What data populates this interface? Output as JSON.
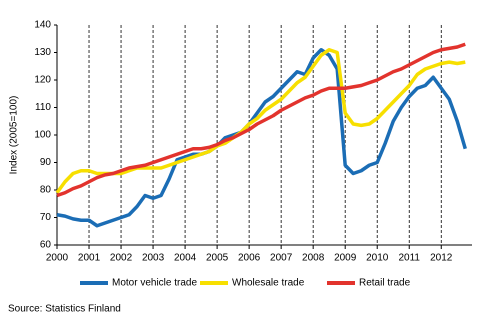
{
  "chart_data": {
    "type": "line",
    "y_label": "Index (2005=100)",
    "source": "Source: Statistics Finland",
    "x": [
      2000,
      2000.25,
      2000.5,
      2000.75,
      2001,
      2001.25,
      2001.5,
      2001.75,
      2002,
      2002.25,
      2002.5,
      2002.75,
      2003,
      2003.25,
      2003.5,
      2003.75,
      2004,
      2004.25,
      2004.5,
      2004.75,
      2005,
      2005.25,
      2005.5,
      2005.75,
      2006,
      2006.25,
      2006.5,
      2006.75,
      2007,
      2007.25,
      2007.5,
      2007.75,
      2008,
      2008.25,
      2008.5,
      2008.75,
      2009,
      2009.25,
      2009.5,
      2009.75,
      2010,
      2010.25,
      2010.5,
      2010.75,
      2011,
      2011.25,
      2011.5,
      2011.75,
      2012,
      2012.25,
      2012.5,
      2012.75
    ],
    "series": [
      {
        "name": "Motor vehicle trade",
        "color": "#1b6db5",
        "values": [
          71,
          70.5,
          69.5,
          69,
          69,
          67,
          68,
          69,
          70,
          71,
          74,
          78,
          77,
          78,
          84,
          91,
          92,
          93,
          93,
          94,
          96,
          99,
          100,
          101,
          104,
          108,
          112,
          114,
          117,
          120,
          123,
          122,
          128,
          131,
          129,
          124,
          89,
          86,
          87,
          89,
          90,
          97,
          105,
          110,
          114,
          117,
          118,
          121,
          117,
          113,
          105,
          95
        ]
      },
      {
        "name": "Wholesale trade",
        "color": "#f7df00",
        "values": [
          79,
          83,
          86,
          87,
          87,
          86,
          86,
          86,
          86,
          87,
          88,
          88,
          88,
          88,
          89,
          90,
          91,
          92,
          93,
          94,
          96,
          97,
          99,
          101,
          104,
          106,
          109,
          111,
          113,
          116,
          119,
          121,
          125,
          129,
          131,
          130,
          108,
          104,
          103.5,
          104,
          106,
          109,
          112,
          115,
          118,
          122,
          124,
          125,
          126,
          126.5,
          126,
          126.5
        ]
      },
      {
        "name": "Retail trade",
        "color": "#e2332d",
        "values": [
          78,
          79,
          80.5,
          81.5,
          83,
          84.5,
          85.5,
          86,
          87,
          88,
          88.5,
          89,
          90,
          91,
          92,
          93,
          94,
          95,
          95,
          95.5,
          96.5,
          98,
          99,
          100.5,
          102,
          104,
          105.5,
          107,
          109,
          110.5,
          112,
          113.5,
          114.5,
          116,
          117,
          117,
          117,
          117.5,
          118,
          119,
          120,
          121.5,
          123,
          124,
          125.5,
          127,
          128.5,
          130,
          131,
          131.5,
          132,
          133
        ]
      }
    ],
    "xlim": [
      2000,
      2012.96
    ],
    "xticks": [
      2000,
      2001,
      2002,
      2003,
      2004,
      2005,
      2006,
      2007,
      2008,
      2009,
      2010,
      2011,
      2012
    ],
    "ylim": [
      60,
      140
    ],
    "yticks": [
      60,
      70,
      80,
      90,
      100,
      110,
      120,
      130,
      140
    ],
    "grid": true
  }
}
